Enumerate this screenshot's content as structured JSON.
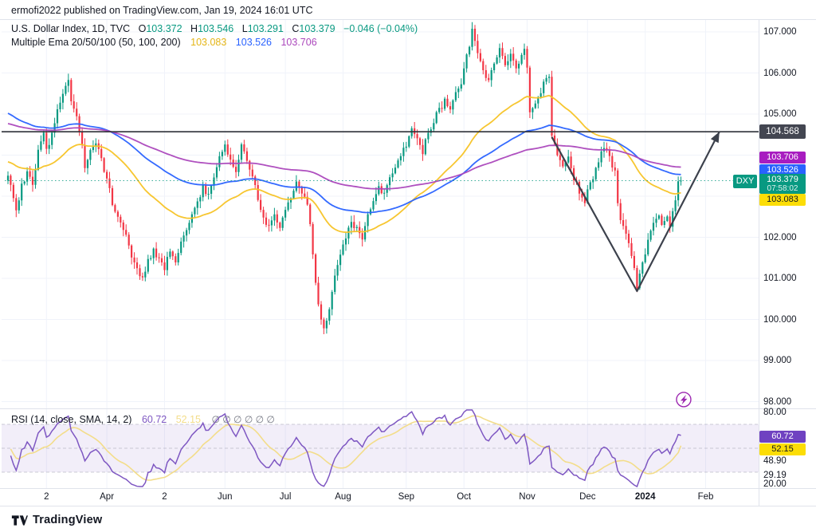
{
  "header": {
    "byline": "ermofi2022 published on TradingView.com, Jan 19, 2024 16:01 UTC"
  },
  "main_legend": {
    "title": "U.S. Dollar Index, 1D, TVC",
    "ohlc": [
      {
        "label": "O",
        "value": "103.372"
      },
      {
        "label": "H",
        "value": "103.546"
      },
      {
        "label": "L",
        "value": "103.291"
      },
      {
        "label": "C",
        "value": "103.379"
      }
    ],
    "change": "−0.046 (−0.04%)"
  },
  "ema_legend": {
    "title": "Multiple Ema 20/50/100 (50, 100, 200)",
    "values": [
      {
        "text": "103.083",
        "color": "yellow_text"
      },
      {
        "text": "103.526",
        "color": "blue"
      },
      {
        "text": "103.706",
        "color": "purple"
      }
    ]
  },
  "rsi_legend": {
    "title": "RSI (14, close, SMA, 14, 2)",
    "rsi_value": "60.72",
    "sma_value": "52.15",
    "empty_slots": "∅  ∅  ∅  ∅  ∅  ∅"
  },
  "price_axis": {
    "labels": [
      {
        "text": "107.000",
        "value": 107
      },
      {
        "text": "106.000",
        "value": 106
      },
      {
        "text": "105.000",
        "value": 105
      },
      {
        "text": "102.000",
        "value": 102
      },
      {
        "text": "101.000",
        "value": 101
      },
      {
        "text": "100.000",
        "value": 100
      },
      {
        "text": "99.000",
        "value": 99
      },
      {
        "text": "98.000",
        "value": 98
      }
    ],
    "badges": [
      {
        "text": "104.568",
        "style": "dark"
      },
      {
        "text": "103.706",
        "style": "purple"
      },
      {
        "text": "103.526",
        "style": "blue"
      },
      {
        "text": "103.379",
        "sub": "07:58:02",
        "style": "teal",
        "tag": "DXY"
      },
      {
        "text": "103.083",
        "style": "yellow"
      }
    ]
  },
  "rsi_axis": {
    "labels": [
      {
        "text": "80.00",
        "value": 80
      },
      {
        "text": "48.90",
        "value": 48.9
      },
      {
        "text": "29.19",
        "value": 29.19
      },
      {
        "text": "20.00",
        "value": 20
      }
    ],
    "badges": [
      {
        "text": "60.72",
        "value": 60.72,
        "style": "rsi-purple"
      },
      {
        "text": "52.15",
        "value": 52.15,
        "style": "yellow"
      }
    ]
  },
  "time_axis": {
    "ticks": [
      {
        "label": "2",
        "day": 14
      },
      {
        "label": "Apr",
        "day": 36
      },
      {
        "label": "2",
        "day": 57
      },
      {
        "label": "Jun",
        "day": 79
      },
      {
        "label": "Jul",
        "day": 101
      },
      {
        "label": "Aug",
        "day": 122
      },
      {
        "label": "Sep",
        "day": 145
      },
      {
        "label": "Oct",
        "day": 166
      },
      {
        "label": "Nov",
        "day": 189
      },
      {
        "label": "Dec",
        "day": 211
      },
      {
        "label": "2024",
        "day": 232,
        "bold": true
      },
      {
        "label": "Feb",
        "day": 254
      }
    ]
  },
  "footer": {
    "brand": "TradingView"
  },
  "colors": {
    "up": "#089981",
    "down": "#f23645",
    "teal": "#089981",
    "blue": "#2962ff",
    "yellow": "#f7c325",
    "purple": "#ab47bc",
    "yellow_text": "#e4b515",
    "purple_badge": "#a81cc0",
    "yellow_badge": "#fcdd06",
    "dark_badge": "#434651",
    "rsi_line": "#7e57c2",
    "rsi_sma": "#f3dd8a",
    "rsi_badge": "#6f42c1",
    "band": "rgba(126,87,194,0.10)",
    "band_edge": "#a5a8b6",
    "drawing": "#3c414c",
    "ray": "#2e3138",
    "grid": "#f0f3fa",
    "sep": "#e0e3eb",
    "marker": "#9c27b0"
  },
  "chart_data": {
    "type": "candlestick",
    "symbol": "DXY",
    "title": "U.S. Dollar Index, 1D, TVC",
    "timeframe": "1D",
    "ylim": [
      97.9,
      107.35
    ],
    "price_levels": [
      98,
      99,
      100,
      101,
      102,
      103,
      104,
      105,
      106,
      107
    ],
    "horizontal_ray_price": 104.568,
    "current_price": 103.379,
    "total_days": 246,
    "close_waypoints": [
      [
        0,
        103.5
      ],
      [
        2,
        102.95
      ],
      [
        3,
        102.7
      ],
      [
        5,
        103.25
      ],
      [
        7,
        103.6
      ],
      [
        9,
        103.3
      ],
      [
        11,
        104.1
      ],
      [
        13,
        104.5
      ],
      [
        14,
        104.1
      ],
      [
        16,
        104.5
      ],
      [
        18,
        105.05
      ],
      [
        20,
        105.45
      ],
      [
        22,
        105.82
      ],
      [
        23,
        105.35
      ],
      [
        25,
        104.9
      ],
      [
        27,
        104.3
      ],
      [
        28,
        103.7
      ],
      [
        30,
        104.05
      ],
      [
        32,
        104.35
      ],
      [
        34,
        103.85
      ],
      [
        36,
        103.4
      ],
      [
        38,
        102.85
      ],
      [
        40,
        102.55
      ],
      [
        42,
        102.25
      ],
      [
        44,
        101.8
      ],
      [
        45,
        101.55
      ],
      [
        47,
        101.2
      ],
      [
        49,
        100.95
      ],
      [
        51,
        101.4
      ],
      [
        53,
        101.7
      ],
      [
        55,
        101.45
      ],
      [
        57,
        101.25
      ],
      [
        59,
        101.65
      ],
      [
        61,
        101.35
      ],
      [
        63,
        101.9
      ],
      [
        65,
        102.2
      ],
      [
        67,
        102.55
      ],
      [
        69,
        102.85
      ],
      [
        71,
        103.2
      ],
      [
        73,
        103.0
      ],
      [
        75,
        103.45
      ],
      [
        77,
        103.9
      ],
      [
        79,
        104.2
      ],
      [
        81,
        103.95
      ],
      [
        83,
        103.6
      ],
      [
        85,
        104.25
      ],
      [
        87,
        103.85
      ],
      [
        89,
        103.45
      ],
      [
        91,
        102.95
      ],
      [
        93,
        102.5
      ],
      [
        95,
        102.25
      ],
      [
        97,
        102.55
      ],
      [
        99,
        102.3
      ],
      [
        101,
        102.7
      ],
      [
        103,
        103.0
      ],
      [
        105,
        103.35
      ],
      [
        107,
        103.1
      ],
      [
        109,
        102.85
      ],
      [
        110,
        102.3
      ],
      [
        112,
        100.9
      ],
      [
        113,
        100.35
      ],
      [
        114,
        99.95
      ],
      [
        115,
        99.75
      ],
      [
        117,
        100.3
      ],
      [
        119,
        101.0
      ],
      [
        121,
        101.6
      ],
      [
        123,
        102.05
      ],
      [
        125,
        102.4
      ],
      [
        127,
        102.2
      ],
      [
        129,
        101.95
      ],
      [
        131,
        102.55
      ],
      [
        133,
        102.9
      ],
      [
        135,
        103.2
      ],
      [
        137,
        103.05
      ],
      [
        139,
        103.4
      ],
      [
        141,
        103.75
      ],
      [
        143,
        104.05
      ],
      [
        145,
        104.2
      ],
      [
        147,
        104.6
      ],
      [
        149,
        104.4
      ],
      [
        151,
        104.1
      ],
      [
        153,
        104.55
      ],
      [
        155,
        104.85
      ],
      [
        157,
        105.1
      ],
      [
        159,
        105.3
      ],
      [
        161,
        105.15
      ],
      [
        163,
        105.5
      ],
      [
        165,
        105.8
      ],
      [
        166,
        106.05
      ],
      [
        168,
        106.7
      ],
      [
        169,
        107.1
      ],
      [
        171,
        106.5
      ],
      [
        173,
        106.1
      ],
      [
        175,
        105.8
      ],
      [
        177,
        106.3
      ],
      [
        179,
        106.55
      ],
      [
        181,
        106.2
      ],
      [
        183,
        106.45
      ],
      [
        185,
        106.15
      ],
      [
        187,
        106.4
      ],
      [
        188,
        106.55
      ],
      [
        189,
        106.2
      ],
      [
        190,
        105.05
      ],
      [
        192,
        105.25
      ],
      [
        194,
        105.55
      ],
      [
        196,
        105.9
      ],
      [
        197,
        105.95
      ],
      [
        198,
        104.4
      ],
      [
        200,
        104.05
      ],
      [
        202,
        103.8
      ],
      [
        204,
        103.9
      ],
      [
        206,
        103.45
      ],
      [
        208,
        103.1
      ],
      [
        210,
        102.8
      ],
      [
        211,
        103.1
      ],
      [
        213,
        103.45
      ],
      [
        215,
        103.85
      ],
      [
        217,
        104.2
      ],
      [
        219,
        104.0
      ],
      [
        221,
        103.55
      ],
      [
        222,
        102.85
      ],
      [
        223,
        102.35
      ],
      [
        225,
        102.15
      ],
      [
        226,
        101.8
      ],
      [
        228,
        101.25
      ],
      [
        229,
        100.75
      ],
      [
        231,
        101.35
      ],
      [
        233,
        101.9
      ],
      [
        235,
        102.3
      ],
      [
        237,
        102.5
      ],
      [
        238,
        102.3
      ],
      [
        240,
        102.45
      ],
      [
        241,
        102.25
      ],
      [
        243,
        102.95
      ],
      [
        244,
        103.3
      ],
      [
        245,
        103.379
      ]
    ],
    "emas": [
      {
        "period": 50,
        "init": 103.85,
        "color": "yellow",
        "last_value": 103.083
      },
      {
        "period": 100,
        "init": 105.05,
        "color": "blue",
        "last_value": 103.526
      },
      {
        "period": 200,
        "init": 104.78,
        "color": "purple",
        "last_value": 103.706
      }
    ],
    "rsi": {
      "period": 14,
      "sma_period": 14,
      "levels": [
        70,
        50,
        30
      ],
      "last_rsi": 60.72,
      "last_sma": 52.15
    },
    "trend_drawing": {
      "points": [
        [
          198,
          104.44
        ],
        [
          229,
          100.69
        ],
        [
          259,
          104.57
        ]
      ],
      "arrow_end": true
    },
    "marker": {
      "type": "lightning",
      "day": 246,
      "price": 98.05
    }
  }
}
